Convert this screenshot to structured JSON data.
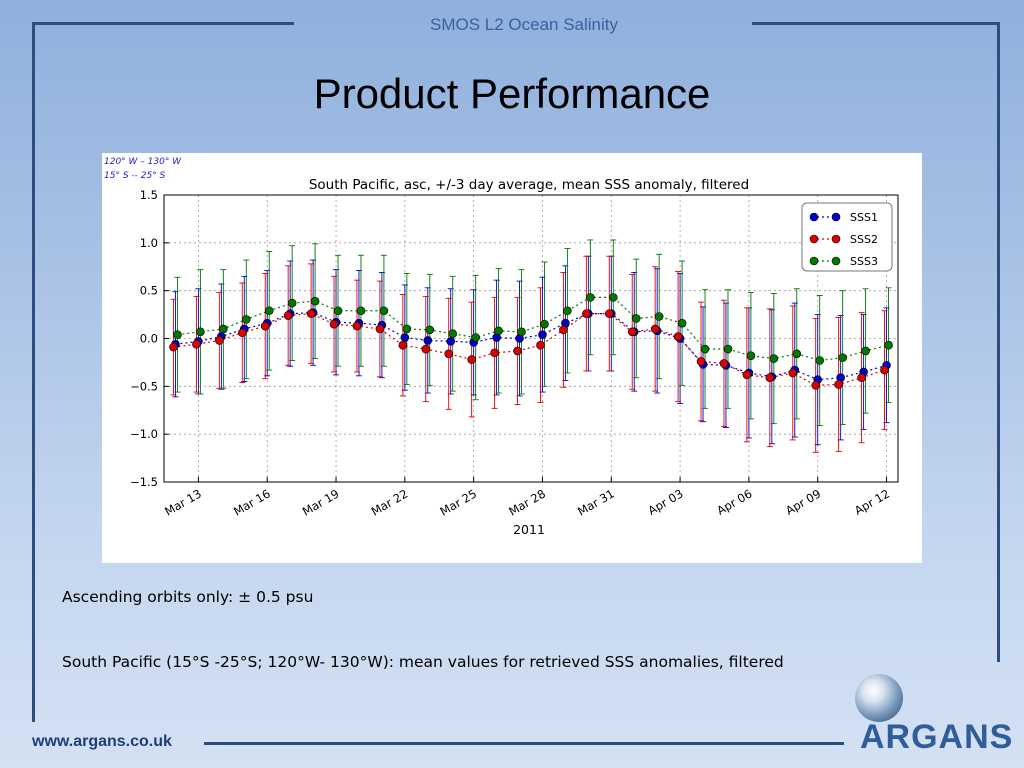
{
  "header": {
    "title": "SMOS L2 Ocean Salinity"
  },
  "slide": {
    "title": "Product Performance"
  },
  "region_note": {
    "line1": "120° W – 130° W",
    "line2": "15° S -- 25° S"
  },
  "chart_data": {
    "type": "line",
    "title": "South Pacific, asc, +/-3 day average, mean SSS anomaly, filtered",
    "xlabel": "2011",
    "ylabel": "",
    "ylim": [
      -1.5,
      1.5
    ],
    "yticks": [
      "1.5",
      "1.0",
      "0.5",
      "0.0",
      "−0.5",
      "−1.0",
      "−1.5"
    ],
    "ytick_values": [
      1.5,
      1.0,
      0.5,
      0.0,
      -0.5,
      -1.0,
      -1.5
    ],
    "xticks": [
      "Mar 13",
      "Mar 16",
      "Mar 19",
      "Mar 22",
      "Mar 25",
      "Mar 28",
      "Mar 31",
      "Apr 03",
      "Apr 06",
      "Apr 09",
      "Apr 12"
    ],
    "xtick_days": [
      13,
      16,
      19,
      22,
      25,
      28,
      31,
      34,
      37,
      40,
      43
    ],
    "x_days": [
      12,
      13,
      14,
      15,
      16,
      17,
      18,
      19,
      20,
      21,
      22,
      23,
      24,
      25,
      26,
      27,
      28,
      29,
      30,
      31,
      32,
      33,
      34,
      35,
      36,
      37,
      38,
      39,
      40,
      41,
      42,
      43
    ],
    "grid": true,
    "legend_position": "top-right",
    "series": [
      {
        "name": "SSS1",
        "color": "#0000cc",
        "values": [
          -0.06,
          -0.03,
          0.02,
          0.1,
          0.16,
          0.26,
          0.27,
          0.17,
          0.16,
          0.14,
          0.01,
          -0.02,
          -0.03,
          -0.04,
          0.01,
          0.0,
          0.04,
          0.16,
          0.26,
          0.26,
          0.07,
          0.08,
          0.0,
          -0.27,
          -0.28,
          -0.36,
          -0.4,
          -0.33,
          -0.43,
          -0.41,
          -0.35,
          -0.28
        ],
        "err": [
          0.55,
          0.55,
          0.55,
          0.55,
          0.55,
          0.55,
          0.55,
          0.55,
          0.55,
          0.55,
          0.55,
          0.55,
          0.55,
          0.55,
          0.6,
          0.6,
          0.6,
          0.6,
          0.6,
          0.6,
          0.62,
          0.65,
          0.68,
          0.6,
          0.65,
          0.68,
          0.7,
          0.7,
          0.68,
          0.65,
          0.6,
          0.6
        ]
      },
      {
        "name": "SSS2",
        "color": "#dd0000",
        "values": [
          -0.09,
          -0.06,
          -0.02,
          0.06,
          0.13,
          0.24,
          0.26,
          0.15,
          0.13,
          0.1,
          -0.07,
          -0.11,
          -0.16,
          -0.22,
          -0.15,
          -0.13,
          -0.07,
          0.09,
          0.26,
          0.26,
          0.07,
          0.1,
          0.02,
          -0.24,
          -0.26,
          -0.38,
          -0.41,
          -0.36,
          -0.49,
          -0.48,
          -0.41,
          -0.33
        ],
        "err": [
          0.5,
          0.5,
          0.5,
          0.52,
          0.55,
          0.52,
          0.52,
          0.5,
          0.48,
          0.5,
          0.53,
          0.55,
          0.58,
          0.6,
          0.58,
          0.56,
          0.6,
          0.6,
          0.6,
          0.6,
          0.6,
          0.65,
          0.68,
          0.62,
          0.66,
          0.7,
          0.72,
          0.7,
          0.7,
          0.7,
          0.68,
          0.62
        ]
      },
      {
        "name": "SSS3",
        "color": "#007700",
        "values": [
          0.04,
          0.07,
          0.1,
          0.2,
          0.29,
          0.37,
          0.39,
          0.29,
          0.29,
          0.29,
          0.1,
          0.09,
          0.05,
          0.01,
          0.08,
          0.07,
          0.15,
          0.29,
          0.43,
          0.43,
          0.21,
          0.23,
          0.16,
          -0.11,
          -0.11,
          -0.18,
          -0.21,
          -0.16,
          -0.23,
          -0.2,
          -0.13,
          -0.07
        ],
        "err": [
          0.6,
          0.65,
          0.62,
          0.62,
          0.62,
          0.6,
          0.6,
          0.58,
          0.58,
          0.58,
          0.58,
          0.58,
          0.6,
          0.65,
          0.65,
          0.65,
          0.65,
          0.65,
          0.6,
          0.6,
          0.62,
          0.65,
          0.65,
          0.62,
          0.62,
          0.66,
          0.68,
          0.68,
          0.68,
          0.7,
          0.65,
          0.6
        ]
      }
    ]
  },
  "notes": [
    "Ascending orbits only: ± 0.5 psu",
    "South Pacific (15°S -25°S; 120°W- 130°W): mean values for retrieved SSS anomalies,  filtered"
  ],
  "footer": {
    "url": "www.argans.co.uk",
    "logo_text": "ARGANS"
  }
}
